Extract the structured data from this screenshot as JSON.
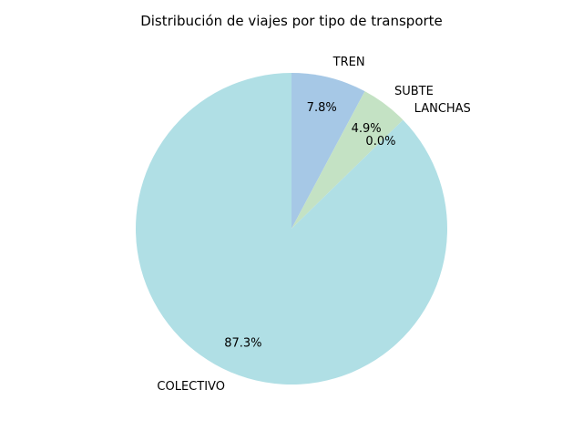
{
  "chart_data": {
    "type": "pie",
    "title": "Distribución de viajes por tipo de transporte",
    "start_angle_deg": 90,
    "direction": "clockwise",
    "slices": [
      {
        "label": "TREN",
        "value": 7.8,
        "pct_label": "7.8%",
        "color": "#a6c8e6"
      },
      {
        "label": "SUBTE",
        "value": 4.9,
        "pct_label": "4.9%",
        "color": "#c4e2c4"
      },
      {
        "label": "LANCHAS",
        "value": 0.0,
        "pct_label": "0.0%",
        "color": "#f2c4c4"
      },
      {
        "label": "COLECTIVO",
        "value": 87.3,
        "pct_label": "87.3%",
        "color": "#b0dfe5"
      }
    ]
  }
}
